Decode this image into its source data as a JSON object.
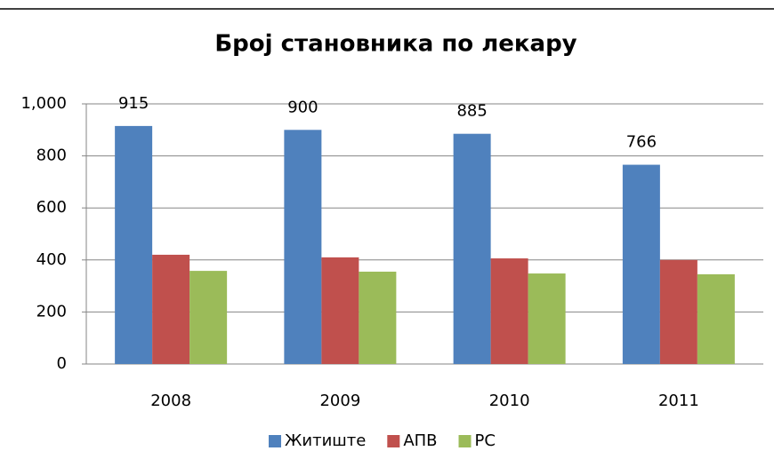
{
  "chart_data": {
    "type": "bar",
    "title": "Број становника по лекару",
    "categories": [
      "2008",
      "2009",
      "2010",
      "2011"
    ],
    "series": [
      {
        "name": "Житиште",
        "color": "#4f81bd",
        "values": [
          915,
          900,
          885,
          766
        ]
      },
      {
        "name": "АПВ",
        "color": "#c0504d",
        "values": [
          420,
          410,
          406,
          400
        ]
      },
      {
        "name": "РС",
        "color": "#9bbb59",
        "values": [
          358,
          355,
          348,
          345
        ]
      }
    ],
    "data_labels_series": 0,
    "ylim": [
      0,
      1000
    ],
    "yticks": [
      0,
      200,
      400,
      600,
      800,
      {
        "value": 1000,
        "label": "1,000"
      }
    ],
    "grid": true,
    "legend": "bottom"
  }
}
